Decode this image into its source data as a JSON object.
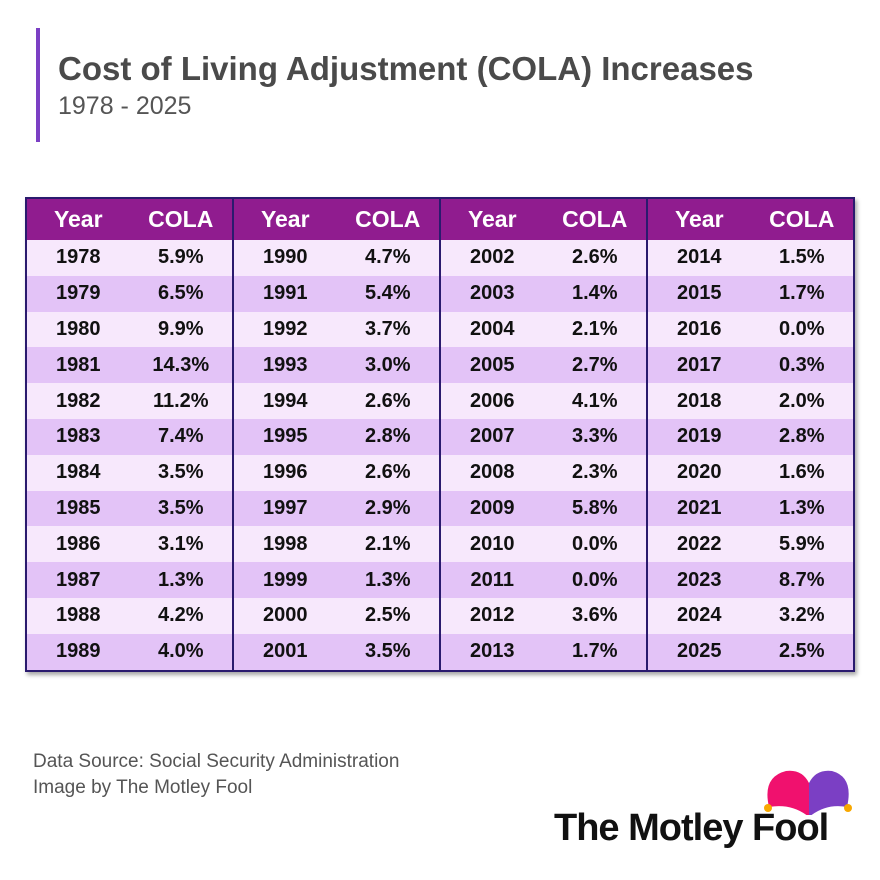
{
  "header": {
    "title": "Cost of Living Adjustment (COLA) Increases",
    "subtitle": "1978 - 2025"
  },
  "table": {
    "col_year": "Year",
    "col_cola": "COLA",
    "groups": [
      [
        [
          "1978",
          "5.9%"
        ],
        [
          "1979",
          "6.5%"
        ],
        [
          "1980",
          "9.9%"
        ],
        [
          "1981",
          "14.3%"
        ],
        [
          "1982",
          "11.2%"
        ],
        [
          "1983",
          "7.4%"
        ],
        [
          "1984",
          "3.5%"
        ],
        [
          "1985",
          "3.5%"
        ],
        [
          "1986",
          "3.1%"
        ],
        [
          "1987",
          "1.3%"
        ],
        [
          "1988",
          "4.2%"
        ],
        [
          "1989",
          "4.0%"
        ]
      ],
      [
        [
          "1990",
          "4.7%"
        ],
        [
          "1991",
          "5.4%"
        ],
        [
          "1992",
          "3.7%"
        ],
        [
          "1993",
          "3.0%"
        ],
        [
          "1994",
          "2.6%"
        ],
        [
          "1995",
          "2.8%"
        ],
        [
          "1996",
          "2.6%"
        ],
        [
          "1997",
          "2.9%"
        ],
        [
          "1998",
          "2.1%"
        ],
        [
          "1999",
          "1.3%"
        ],
        [
          "2000",
          "2.5%"
        ],
        [
          "2001",
          "3.5%"
        ]
      ],
      [
        [
          "2002",
          "2.6%"
        ],
        [
          "2003",
          "1.4%"
        ],
        [
          "2004",
          "2.1%"
        ],
        [
          "2005",
          "2.7%"
        ],
        [
          "2006",
          "4.1%"
        ],
        [
          "2007",
          "3.3%"
        ],
        [
          "2008",
          "2.3%"
        ],
        [
          "2009",
          "5.8%"
        ],
        [
          "2010",
          "0.0%"
        ],
        [
          "2011",
          "0.0%"
        ],
        [
          "2012",
          "3.6%"
        ],
        [
          "2013",
          "1.7%"
        ]
      ],
      [
        [
          "2014",
          "1.5%"
        ],
        [
          "2015",
          "1.7%"
        ],
        [
          "2016",
          "0.0%"
        ],
        [
          "2017",
          "0.3%"
        ],
        [
          "2018",
          "2.0%"
        ],
        [
          "2019",
          "2.8%"
        ],
        [
          "2020",
          "1.6%"
        ],
        [
          "2021",
          "1.3%"
        ],
        [
          "2022",
          "5.9%"
        ],
        [
          "2023",
          "8.7%"
        ],
        [
          "2024",
          "3.2%"
        ],
        [
          "2025",
          "2.5%"
        ]
      ]
    ]
  },
  "footer": {
    "source": "Data Source: Social Security Administration",
    "credit": "Image by The Motley Fool",
    "logo": "The Motley Fool"
  },
  "colors": {
    "header": "#901c8f",
    "row_light": "#f7e8fc",
    "row_dark": "#e3c3f7",
    "accent": "#7b3fc4"
  }
}
